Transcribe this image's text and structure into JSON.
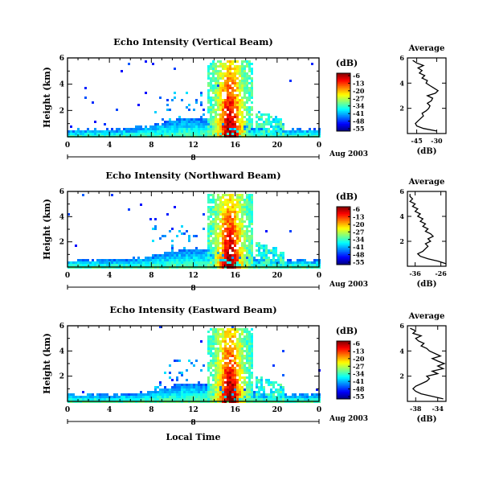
{
  "figure": {
    "x_axis_label": "Local Time",
    "colorbar_unit": "(dB)",
    "average_title": "Average",
    "average_x_unit": "(dB)"
  },
  "chart_data": [
    {
      "type": "heatmap",
      "title": "Echo Intensity (Vertical Beam)",
      "ylabel": "Height (km)",
      "xlabel": "Local Time",
      "x_ticks": [
        "0",
        "4",
        "8",
        "12",
        "16",
        "20",
        "0"
      ],
      "x_range": [
        0,
        24
      ],
      "y_ticks": [
        "2",
        "4",
        "6"
      ],
      "y_range": [
        0,
        6
      ],
      "day_label": "8",
      "date_label": "Aug 2003",
      "colorbar": {
        "unit": "(dB)",
        "ticks": [
          "-6",
          "-13",
          "-20",
          "-27",
          "-34",
          "-41",
          "-48",
          "-55"
        ],
        "range": [
          -55,
          -6
        ]
      },
      "average_profile": {
        "title": "Average",
        "xlabel": "(dB)",
        "x_ticks": [
          "-45",
          "-30"
        ],
        "x_range": [
          -52,
          -23
        ],
        "y_range": [
          0,
          6
        ],
        "heights": [
          0.2,
          0.4,
          0.6,
          0.8,
          1.0,
          1.2,
          1.4,
          1.6,
          1.8,
          2.0,
          2.2,
          2.4,
          2.6,
          2.8,
          3.0,
          3.2,
          3.4,
          3.6,
          3.8,
          4.0,
          4.2,
          4.4,
          4.6,
          4.8,
          5.0,
          5.2,
          5.4,
          5.6,
          5.8
        ],
        "values": [
          -30,
          -40,
          -45,
          -46,
          -44,
          -42,
          -40,
          -41,
          -38,
          -36,
          -35,
          -37,
          -34,
          -33,
          -37,
          -31,
          -29,
          -32,
          -35,
          -38,
          -37,
          -41,
          -39,
          -43,
          -41,
          -44,
          -40,
          -45,
          -48
        ]
      }
    },
    {
      "type": "heatmap",
      "title": "Echo Intensity (Northward Beam)",
      "ylabel": "Height (km)",
      "xlabel": "Local Time",
      "x_ticks": [
        "0",
        "4",
        "8",
        "12",
        "16",
        "20",
        "0"
      ],
      "x_range": [
        0,
        24
      ],
      "y_ticks": [
        "2",
        "4",
        "6"
      ],
      "y_range": [
        0,
        6
      ],
      "day_label": "8",
      "date_label": "Aug 2003",
      "colorbar": {
        "unit": "(dB)",
        "ticks": [
          "-6",
          "-13",
          "-20",
          "-27",
          "-34",
          "-41",
          "-48",
          "-55"
        ],
        "range": [
          -55,
          -6
        ]
      },
      "average_profile": {
        "title": "Average",
        "xlabel": "(dB)",
        "x_ticks": [
          "-36",
          "-26"
        ],
        "x_range": [
          -39,
          -24
        ],
        "y_range": [
          0,
          6
        ],
        "heights": [
          0.2,
          0.4,
          0.6,
          0.8,
          1.0,
          1.2,
          1.4,
          1.6,
          1.8,
          2.0,
          2.2,
          2.4,
          2.6,
          2.8,
          3.0,
          3.2,
          3.4,
          3.6,
          3.8,
          4.0,
          4.2,
          4.4,
          4.6,
          4.8,
          5.0,
          5.2,
          5.4,
          5.6,
          5.8
        ],
        "values": [
          -24,
          -27,
          -31,
          -34,
          -35,
          -33,
          -32,
          -31,
          -32,
          -30,
          -31,
          -29,
          -30,
          -32,
          -31,
          -33,
          -32,
          -34,
          -33,
          -35,
          -34,
          -36,
          -35,
          -37,
          -36,
          -38,
          -37,
          -38,
          -38
        ]
      }
    },
    {
      "type": "heatmap",
      "title": "Echo Intensity (Eastward Beam)",
      "ylabel": "Height (km)",
      "xlabel": "Local Time",
      "x_ticks": [
        "0",
        "4",
        "8",
        "12",
        "16",
        "20",
        "0"
      ],
      "x_range": [
        0,
        24
      ],
      "y_ticks": [
        "2",
        "4",
        "6"
      ],
      "y_range": [
        0,
        6
      ],
      "day_label": "8",
      "date_label": "Aug 2003",
      "colorbar": {
        "unit": "(dB)",
        "ticks": [
          "-6",
          "-13",
          "-20",
          "-27",
          "-34",
          "-41",
          "-48",
          "-55"
        ],
        "range": [
          -55,
          -6
        ]
      },
      "average_profile": {
        "title": "Average",
        "xlabel": "(dB)",
        "x_ticks": [
          "-38",
          "-34"
        ],
        "x_range": [
          -39.5,
          -32.5
        ],
        "y_range": [
          0,
          6
        ],
        "heights": [
          0.2,
          0.4,
          0.6,
          0.8,
          1.0,
          1.2,
          1.4,
          1.6,
          1.8,
          2.0,
          2.2,
          2.4,
          2.6,
          2.8,
          3.0,
          3.2,
          3.4,
          3.6,
          3.8,
          4.0,
          4.2,
          4.4,
          4.6,
          4.8,
          5.0,
          5.2,
          5.4,
          5.6,
          5.8
        ],
        "values": [
          -33,
          -35,
          -37,
          -38,
          -38.5,
          -38,
          -37,
          -36,
          -35.5,
          -36,
          -34,
          -35,
          -33,
          -34,
          -32.8,
          -34,
          -35,
          -33.5,
          -34.5,
          -35.5,
          -36,
          -37,
          -36.5,
          -37.5,
          -38,
          -37,
          -38.5,
          -38,
          -39
        ]
      }
    }
  ]
}
